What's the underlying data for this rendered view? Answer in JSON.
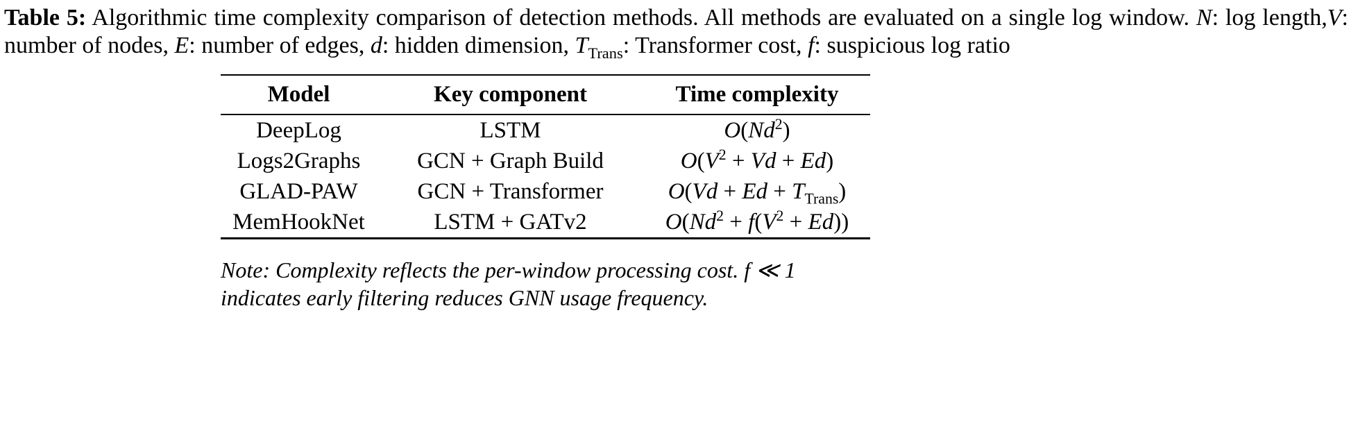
{
  "caption": {
    "html": "<b>Table 5:</b> Algorithmic time complexity comparison of detection methods. All methods are evaluated on a single log window. <i>N</i>: log length,<i>V</i>: number of nodes, <i>E</i>: number of edges, <i>d</i>: hidden dimension, <i>T</i><sub>Trans</sub>: Transformer cost, <i>f</i>: suspicious log ratio"
  },
  "table": {
    "headers": [
      "Model",
      "Key component",
      "Time complexity"
    ],
    "rows": [
      {
        "model": "DeepLog",
        "component": "LSTM",
        "complexity": "<i>O</i>(<i>Nd</i><sup>2</sup>)"
      },
      {
        "model": "Logs2Graphs",
        "component": "GCN + Graph Build",
        "complexity": "<i>O</i>(<i>V</i><sup>2</sup> + <i>Vd</i> + <i>Ed</i>)"
      },
      {
        "model": "GLAD-PAW",
        "component": "GCN + Transformer",
        "complexity": "<i>O</i>(<i>Vd</i> + <i>Ed</i> + <i>T</i><sub>Trans</sub>)"
      },
      {
        "model": "MemHookNet",
        "component": "LSTM + GATv2",
        "complexity": "<i>O</i>(<i>Nd</i><sup>2</sup> + <i>f</i>(<i>V</i><sup>2</sup> + <i>Ed</i>))"
      }
    ]
  },
  "note": {
    "text": "Note: Complexity reflects the per-window processing cost. f ≪ 1 indicates early filtering reduces GNN usage frequency."
  }
}
